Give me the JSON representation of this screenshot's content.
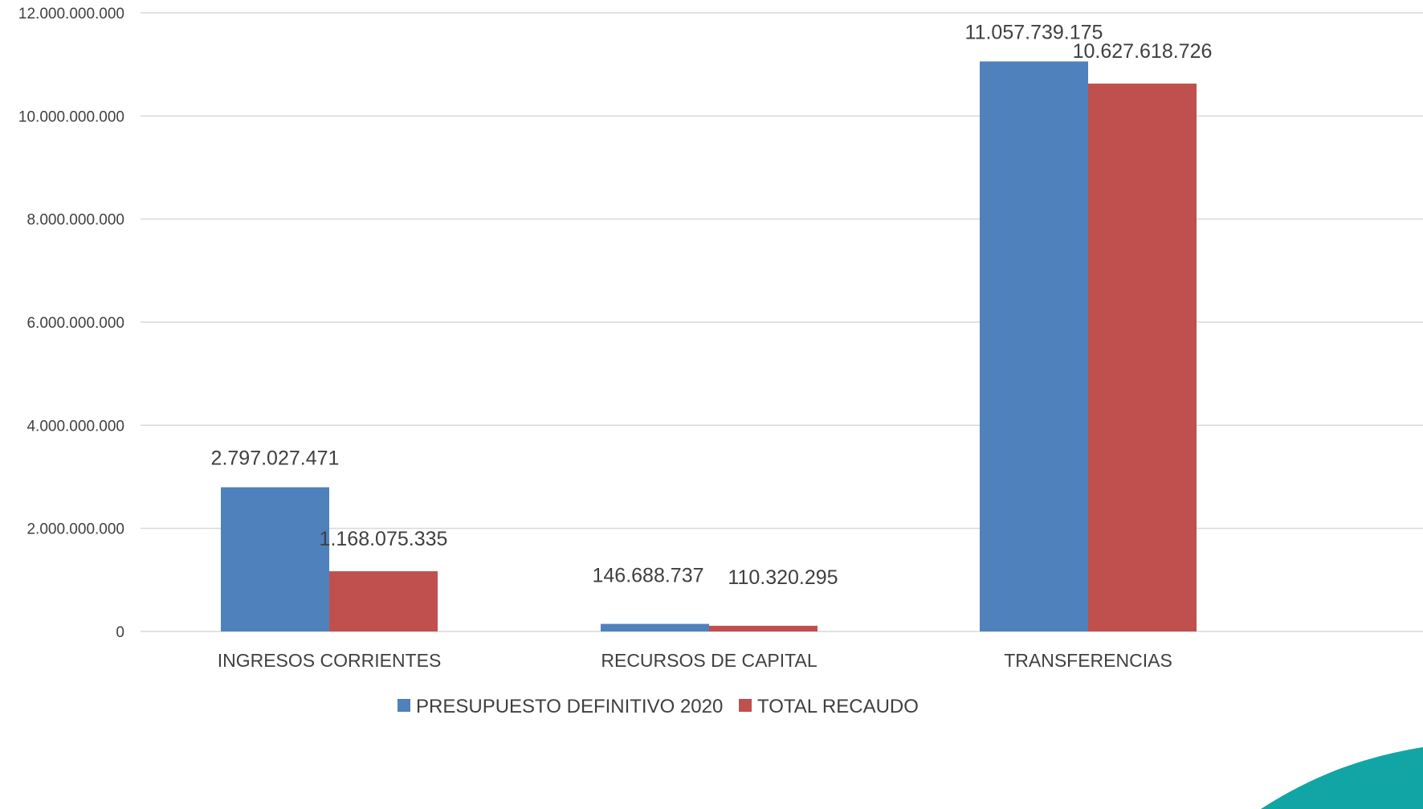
{
  "chart_data": {
    "type": "bar",
    "title": "",
    "xlabel": "",
    "ylabel": "",
    "categories": [
      "INGRESOS CORRIENTES",
      "RECURSOS DE CAPITAL",
      "TRANSFERENCIAS"
    ],
    "series": [
      {
        "name": "PRESUPUESTO DEFINITIVO 2020",
        "color": "#4F81BD",
        "values": [
          2797027471,
          146688737,
          11057739175
        ],
        "labels": [
          "2.797.027.471",
          "146.688.737",
          "11.057.739.175"
        ]
      },
      {
        "name": "TOTAL RECAUDO",
        "color": "#C0504D",
        "values": [
          1168075335,
          110320295,
          10627618726
        ],
        "labels": [
          "1.168.075.335",
          "110.320.295",
          "10.627.618.726"
        ]
      }
    ],
    "ylim": [
      0,
      12000000000
    ],
    "yticks": [
      0,
      2000000000,
      4000000000,
      6000000000,
      8000000000,
      10000000000,
      12000000000
    ],
    "ytick_labels": [
      "0",
      "2.000.000.000",
      "4.000.000.000",
      "6.000.000.000",
      "8.000.000.000",
      "10.000.000.000",
      "12.000.000.000"
    ],
    "grid": true,
    "legend": "bottom",
    "gridline_color": "#d9d9d9",
    "decoration_color": "#12a5a5"
  }
}
